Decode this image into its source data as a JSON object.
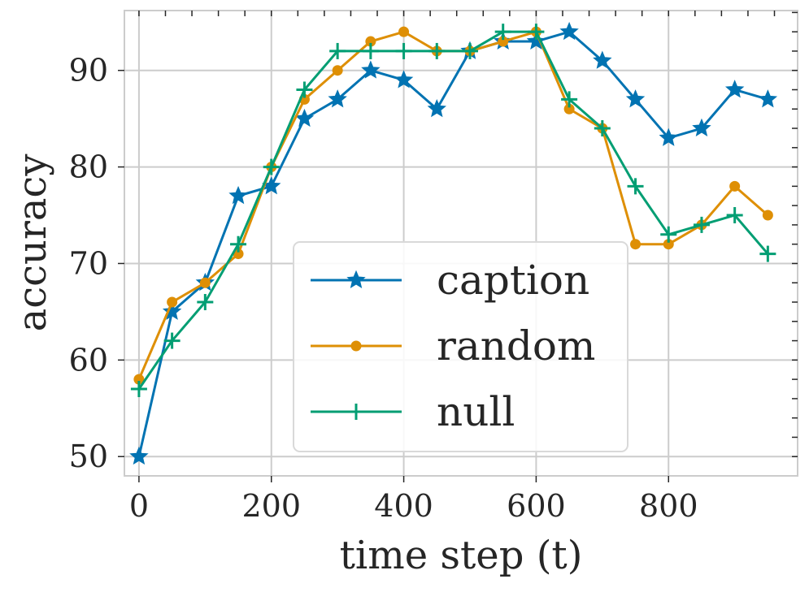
{
  "chart_data": {
    "type": "line",
    "xlabel": "time step (t)",
    "ylabel": "accuracy",
    "xlim": [
      -22,
      995
    ],
    "ylim": [
      48,
      96.2
    ],
    "xticks": [
      0,
      200,
      400,
      600,
      800
    ],
    "yticks": [
      50,
      60,
      70,
      80,
      90
    ],
    "xtick_labels": [
      "0",
      "200",
      "400",
      "600",
      "800"
    ],
    "ytick_labels": [
      "50",
      "60",
      "70",
      "80",
      "90"
    ],
    "grid": true,
    "legend_position": "lower center",
    "x": [
      0,
      50,
      100,
      150,
      200,
      250,
      300,
      350,
      400,
      450,
      500,
      550,
      600,
      650,
      700,
      750,
      800,
      850,
      900,
      950
    ],
    "series": [
      {
        "name": "caption",
        "marker": "star",
        "color": "#0173b2",
        "values": [
          50,
          65,
          68,
          77,
          78,
          85,
          87,
          90,
          89,
          86,
          92,
          93,
          93,
          94,
          91,
          87,
          83,
          84,
          88,
          87
        ]
      },
      {
        "name": "random",
        "marker": "circle",
        "color": "#de8f05",
        "values": [
          58,
          66,
          68,
          71,
          80,
          87,
          90,
          93,
          94,
          92,
          92,
          93,
          94,
          86,
          84,
          72,
          72,
          74,
          78,
          75
        ]
      },
      {
        "name": "null",
        "marker": "plus",
        "color": "#029e73",
        "values": [
          57,
          62,
          66,
          72,
          80,
          88,
          92,
          92,
          92,
          92,
          92,
          94,
          94,
          87,
          84,
          78,
          73,
          74,
          75,
          71
        ]
      }
    ]
  }
}
